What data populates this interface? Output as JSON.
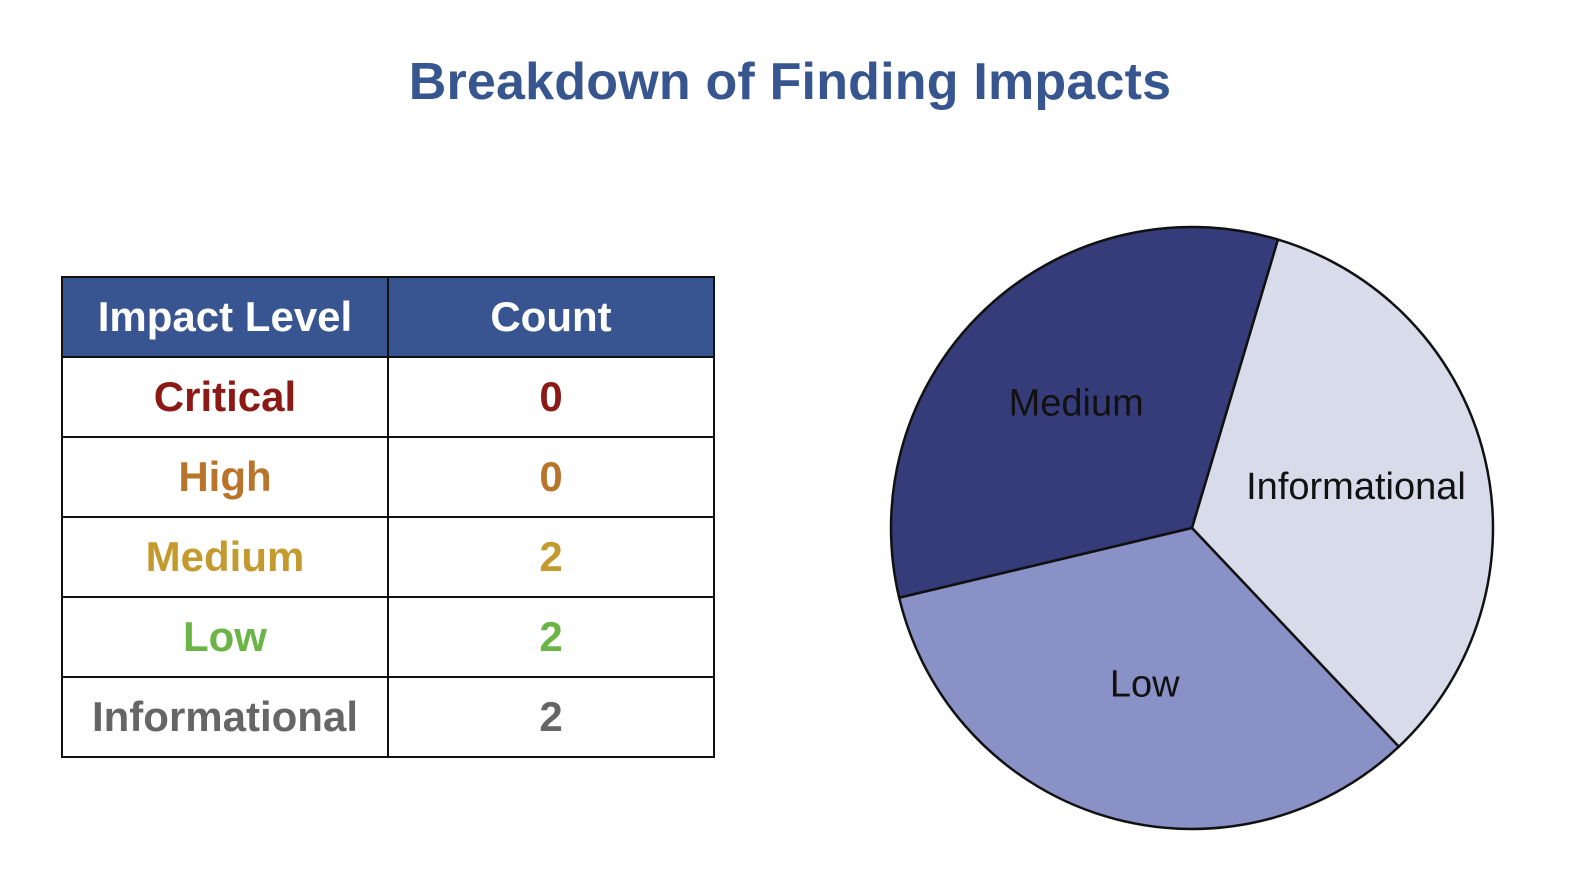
{
  "title": "Breakdown of Finding Impacts",
  "table": {
    "headers": [
      "Impact Level",
      "Count"
    ],
    "rows": [
      {
        "level": "Critical",
        "count": "0",
        "color": "#8b1a17"
      },
      {
        "level": "High",
        "count": "0",
        "color": "#b8742a"
      },
      {
        "level": "Medium",
        "count": "2",
        "color": "#c49a2e"
      },
      {
        "level": "Low",
        "count": "2",
        "color": "#6ab545"
      },
      {
        "level": "Informational",
        "count": "2",
        "color": "#666666"
      }
    ]
  },
  "chart_data": {
    "type": "pie",
    "title": "Breakdown of Finding Impacts",
    "categories": [
      "Medium",
      "Informational",
      "Low"
    ],
    "values": [
      2,
      2,
      2
    ],
    "colors": [
      "#353c79",
      "#d8dbea",
      "#8a91c7"
    ],
    "legend": "none",
    "slice_labels": "inside"
  }
}
